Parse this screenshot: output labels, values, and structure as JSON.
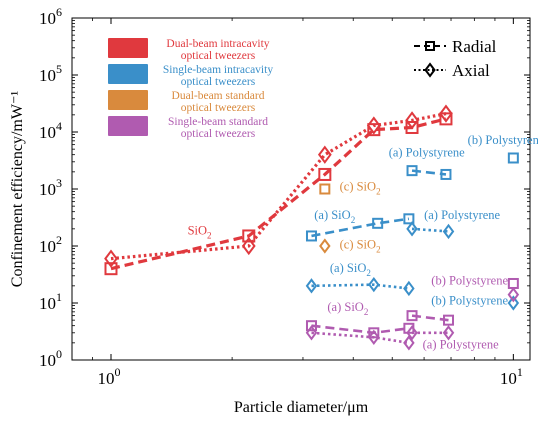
{
  "chart_data": {
    "type": "scatter",
    "x_scale": "log",
    "y_scale": "log",
    "xlim": [
      0.8,
      11
    ],
    "ylim": [
      1,
      1000000
    ],
    "xlabel": "Particle diameter/μm",
    "ylabel": "Confinement efficiency/mW⁻¹",
    "x_ticks": [
      {
        "value": 1,
        "base": "10",
        "exp": "0"
      },
      {
        "value": 10,
        "base": "10",
        "exp": "1"
      }
    ],
    "y_ticks": [
      {
        "value": 1,
        "base": "10",
        "exp": "0"
      },
      {
        "value": 10,
        "base": "10",
        "exp": "1"
      },
      {
        "value": 100,
        "base": "10",
        "exp": "2"
      },
      {
        "value": 1000,
        "base": "10",
        "exp": "3"
      },
      {
        "value": 10000,
        "base": "10",
        "exp": "4"
      },
      {
        "value": 100000,
        "base": "10",
        "exp": "5"
      },
      {
        "value": 1000000,
        "base": "10",
        "exp": "6"
      }
    ],
    "grid": false,
    "colors": {
      "dual_intracavity": "#e0393e",
      "single_intracavity": "#3a8fc9",
      "dual_standard": "#d98a3d",
      "single_standard": "#b05bb0"
    },
    "color_legend": [
      {
        "color_key": "dual_intracavity",
        "line1": "Dual-beam intracavity",
        "line2": "optical tweezers"
      },
      {
        "color_key": "single_intracavity",
        "line1": "Single-beam intracavity",
        "line2": "optical tweezers"
      },
      {
        "color_key": "dual_standard",
        "line1": "Dual-beam standard",
        "line2": "optical tweezers"
      },
      {
        "color_key": "single_standard",
        "line1": "Single-beam standard",
        "line2": "optical tweezers"
      }
    ],
    "marker_legend": [
      {
        "marker": "square",
        "dash": "dashed",
        "label": "Radial"
      },
      {
        "marker": "diamond",
        "dash": "dotted",
        "label": "Axial"
      }
    ],
    "series": [
      {
        "color_key": "dual_intracavity",
        "marker": "square",
        "dash": "dashed",
        "connected": true,
        "stroke_width": 3.2,
        "marker_size": 11,
        "points": [
          [
            1.0,
            40
          ],
          [
            2.2,
            150
          ],
          [
            3.4,
            1800
          ],
          [
            4.5,
            11000
          ],
          [
            5.6,
            12000
          ],
          [
            6.8,
            17000
          ]
        ]
      },
      {
        "color_key": "dual_intracavity",
        "marker": "diamond",
        "dash": "dotted",
        "connected": true,
        "stroke_width": 3.2,
        "marker_size": 15,
        "points": [
          [
            1.0,
            60
          ],
          [
            2.2,
            100
          ],
          [
            3.4,
            4000
          ],
          [
            4.5,
            13000
          ],
          [
            5.6,
            16000
          ],
          [
            6.8,
            21000
          ]
        ]
      },
      {
        "color_key": "single_intracavity",
        "marker": "square",
        "dash": "dashed",
        "connected": true,
        "stroke_width": 2.6,
        "marker_size": 9,
        "points": [
          [
            3.15,
            150
          ],
          [
            4.6,
            250
          ],
          [
            5.5,
            300
          ]
        ]
      },
      {
        "color_key": "single_intracavity",
        "marker": "diamond",
        "dash": "dotted",
        "connected": true,
        "stroke_width": 2.6,
        "marker_size": 12,
        "points": [
          [
            5.6,
            200
          ],
          [
            6.9,
            180
          ]
        ]
      },
      {
        "color_key": "single_intracavity",
        "marker": "square",
        "dash": "dashed",
        "connected": true,
        "stroke_width": 2.6,
        "marker_size": 9,
        "points": [
          [
            5.6,
            2100
          ],
          [
            6.8,
            1800
          ]
        ]
      },
      {
        "color_key": "single_intracavity",
        "marker": "diamond",
        "dash": "dotted",
        "connected": true,
        "stroke_width": 2.6,
        "marker_size": 12,
        "points": [
          [
            3.15,
            20
          ],
          [
            4.5,
            21
          ],
          [
            5.5,
            18
          ]
        ]
      },
      {
        "color_key": "single_intracavity",
        "marker": "square",
        "dash": "none",
        "connected": false,
        "stroke_width": 2.2,
        "marker_size": 9,
        "points": [
          [
            10.0,
            3500
          ]
        ]
      },
      {
        "color_key": "single_intracavity",
        "marker": "diamond",
        "dash": "none",
        "connected": false,
        "stroke_width": 2.2,
        "marker_size": 12,
        "points": [
          [
            10.0,
            10
          ]
        ]
      },
      {
        "color_key": "dual_standard",
        "marker": "square",
        "dash": "none",
        "connected": false,
        "stroke_width": 2.2,
        "marker_size": 9,
        "points": [
          [
            3.4,
            1000
          ]
        ]
      },
      {
        "color_key": "dual_standard",
        "marker": "diamond",
        "dash": "none",
        "connected": false,
        "stroke_width": 2.2,
        "marker_size": 12,
        "points": [
          [
            3.4,
            100
          ]
        ]
      },
      {
        "color_key": "single_standard",
        "marker": "square",
        "dash": "dashed",
        "connected": true,
        "stroke_width": 2.6,
        "marker_size": 9,
        "points": [
          [
            3.15,
            4
          ],
          [
            4.5,
            3
          ],
          [
            5.5,
            3.6
          ]
        ]
      },
      {
        "color_key": "single_standard",
        "marker": "diamond",
        "dash": "dotted",
        "connected": true,
        "stroke_width": 2.6,
        "marker_size": 12,
        "points": [
          [
            3.15,
            3
          ],
          [
            4.5,
            2.5
          ],
          [
            5.5,
            2
          ]
        ]
      },
      {
        "color_key": "single_standard",
        "marker": "square",
        "dash": "dashed",
        "connected": true,
        "stroke_width": 2.6,
        "marker_size": 9,
        "points": [
          [
            5.6,
            6
          ],
          [
            6.9,
            5
          ]
        ]
      },
      {
        "color_key": "single_standard",
        "marker": "diamond",
        "dash": "dotted",
        "connected": true,
        "stroke_width": 2.6,
        "marker_size": 12,
        "points": [
          [
            5.6,
            3
          ],
          [
            6.9,
            3
          ]
        ]
      },
      {
        "color_key": "single_standard",
        "marker": "square",
        "dash": "none",
        "connected": false,
        "stroke_width": 2.2,
        "marker_size": 9,
        "points": [
          [
            10.0,
            22
          ]
        ]
      },
      {
        "color_key": "single_standard",
        "marker": "diamond",
        "dash": "none",
        "connected": false,
        "stroke_width": 2.2,
        "marker_size": 12,
        "points": [
          [
            10.0,
            14
          ]
        ]
      }
    ],
    "annotations": [
      {
        "color_key": "dual_intracavity",
        "text": "SiO",
        "sub": "2",
        "x": 1.55,
        "y": 160,
        "anchor": "start"
      },
      {
        "color_key": "dual_standard",
        "text": "(c) SiO",
        "sub": "2",
        "x": 3.7,
        "y": 950,
        "anchor": "start"
      },
      {
        "color_key": "dual_standard",
        "text": "(c) SiO",
        "sub": "2",
        "x": 3.7,
        "y": 90,
        "anchor": "start"
      },
      {
        "color_key": "single_intracavity",
        "text": "(a) Polystyrene",
        "x": 4.9,
        "y": 3700,
        "anchor": "start"
      },
      {
        "color_key": "single_intracavity",
        "text": "(b) Polystyrene",
        "x": 7.7,
        "y": 6200,
        "anchor": "start"
      },
      {
        "color_key": "single_intracavity",
        "text": "(a) SiO",
        "sub": "2",
        "x": 3.2,
        "y": 300,
        "anchor": "start"
      },
      {
        "color_key": "single_intracavity",
        "text": "(a) Polystyrene",
        "x": 6.0,
        "y": 300,
        "anchor": "start"
      },
      {
        "color_key": "single_intracavity",
        "text": "(a) SiO",
        "sub": "2",
        "x": 3.5,
        "y": 35,
        "anchor": "start"
      },
      {
        "color_key": "single_intracavity",
        "text": "(b) Polystyrene",
        "x": 9.7,
        "y": 9.5,
        "anchor": "end"
      },
      {
        "color_key": "single_standard",
        "text": "(a) SiO",
        "sub": "2",
        "x": 3.45,
        "y": 7.2,
        "anchor": "start"
      },
      {
        "color_key": "single_standard",
        "text": "(a) Polystyrene",
        "x": 5.95,
        "y": 1.6,
        "anchor": "start"
      },
      {
        "color_key": "single_standard",
        "text": "(b) Polystyrene",
        "x": 9.7,
        "y": 21,
        "anchor": "end"
      }
    ]
  }
}
